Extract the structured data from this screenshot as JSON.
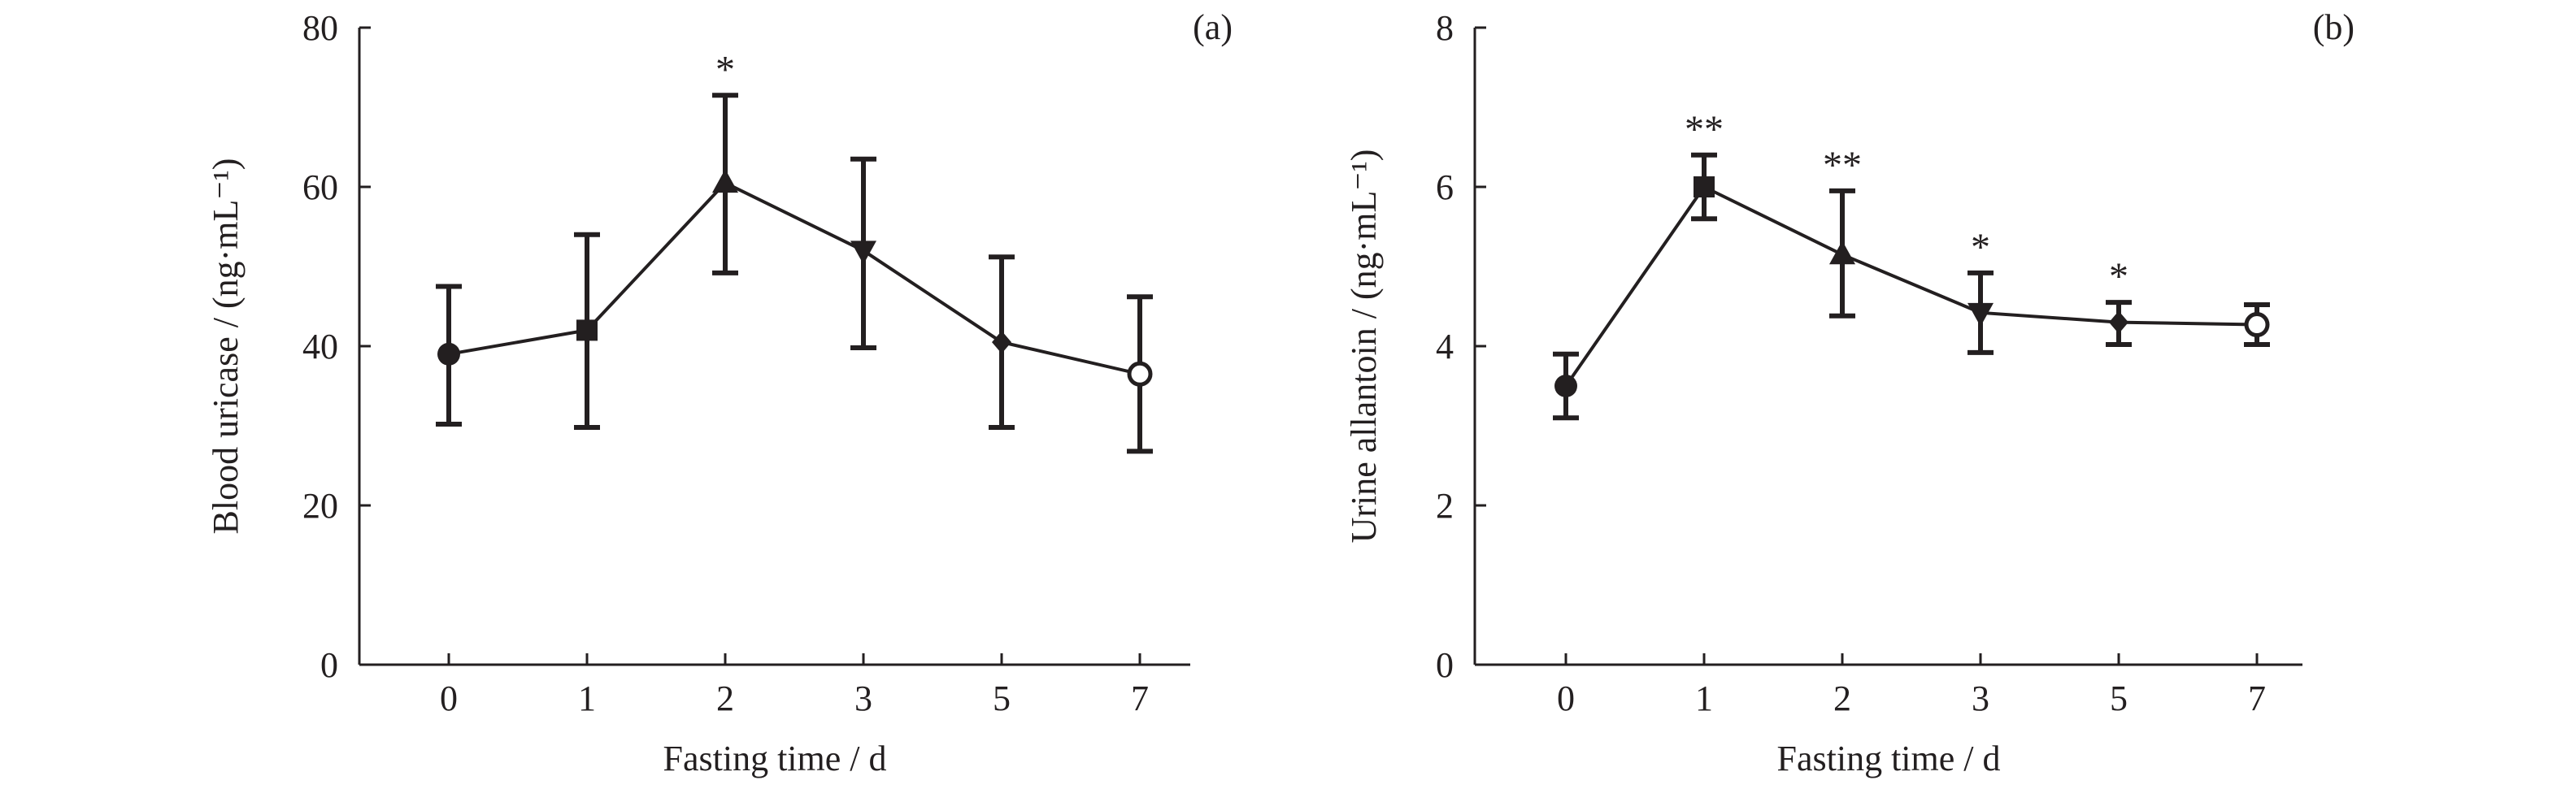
{
  "colors": {
    "ink": "#231f20",
    "background": "#ffffff"
  },
  "chart_data": [
    {
      "type": "line",
      "panel_label": "(a)",
      "xlabel": "Fasting time / d",
      "ylabel": "Blood uricase / (ng·mL⁻¹)",
      "categories": [
        "0",
        "1",
        "2",
        "3",
        "5",
        "7"
      ],
      "ylim": [
        0,
        80
      ],
      "yticks": [
        0,
        20,
        40,
        60,
        80
      ],
      "grid": false,
      "series": [
        {
          "values": [
            39,
            42,
            60.5,
            52,
            40.5,
            36.5
          ],
          "error_upper": [
            47.5,
            54,
            71.5,
            63.5,
            51.2,
            46.2
          ],
          "error_lower": [
            30.2,
            29.8,
            49.2,
            39.8,
            29.8,
            26.8
          ],
          "markers": [
            "circle-filled",
            "square-filled",
            "triangle-up-filled",
            "triangle-down-filled",
            "diamond-filled",
            "circle-open"
          ],
          "significance": [
            "",
            "",
            "*",
            "",
            "",
            ""
          ]
        }
      ]
    },
    {
      "type": "line",
      "panel_label": "(b)",
      "xlabel": "Fasting time / d",
      "ylabel": "Urine allantoin / (ng·mL⁻¹)",
      "categories": [
        "0",
        "1",
        "2",
        "3",
        "5",
        "7"
      ],
      "ylim": [
        0,
        8
      ],
      "yticks": [
        0,
        2,
        4,
        6,
        8
      ],
      "grid": false,
      "series": [
        {
          "values": [
            3.5,
            6.0,
            5.15,
            4.42,
            4.3,
            4.27
          ],
          "error_upper": [
            3.9,
            6.4,
            5.95,
            4.92,
            4.55,
            4.52
          ],
          "error_lower": [
            3.1,
            5.6,
            4.38,
            3.92,
            4.02,
            4.02
          ],
          "markers": [
            "circle-filled",
            "square-filled",
            "triangle-up-filled",
            "triangle-down-filled",
            "diamond-filled",
            "circle-open"
          ],
          "significance": [
            "",
            "**",
            "**",
            "*",
            "*",
            ""
          ]
        }
      ]
    }
  ]
}
